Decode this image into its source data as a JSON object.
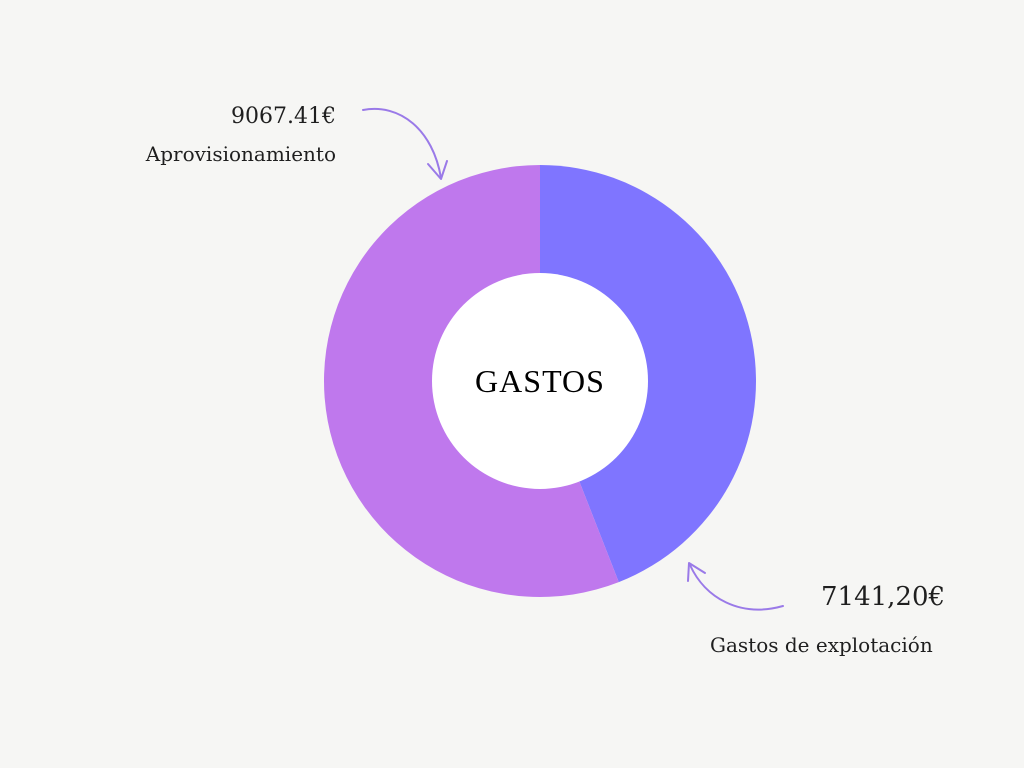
{
  "chart_data": {
    "type": "pie",
    "variant": "donut",
    "title": "GASTOS",
    "series": [
      {
        "name": "Aprovisionamiento",
        "value": 9067.41,
        "label": "9067.41€",
        "color": "#bf78ed"
      },
      {
        "name": "Gastos de explotación",
        "value": 7141.2,
        "label": "7141,20€",
        "color": "#7f75ff"
      }
    ]
  },
  "colors": {
    "background": "#f6f6f4",
    "hole": "#ffffff",
    "arrow": "#9a7ae8"
  }
}
